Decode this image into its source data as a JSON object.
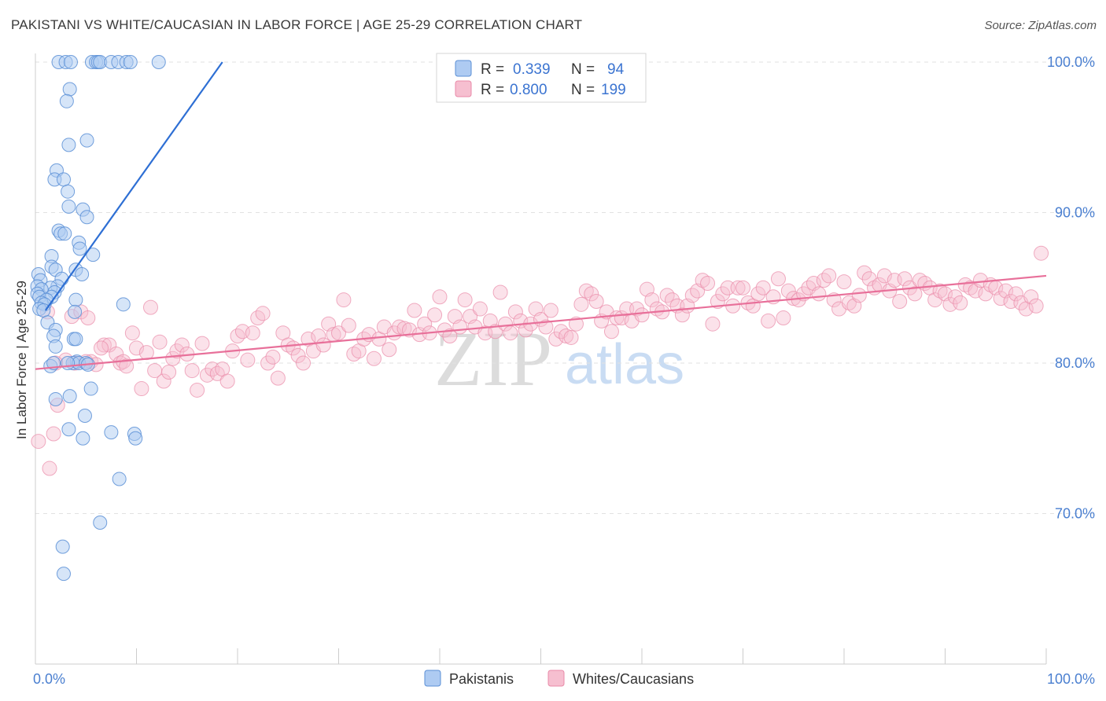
{
  "header": {
    "title": "PAKISTANI VS WHITE/CAUCASIAN IN LABOR FORCE | AGE 25-29 CORRELATION CHART",
    "source": "Source: ZipAtlas.com"
  },
  "watermark": {
    "zip": "ZIP",
    "atlas": "atlas"
  },
  "colors": {
    "blue_fill": "#aecbf2",
    "blue_stroke": "#5b8fd6",
    "blue_line": "#2e6fd4",
    "pink_fill": "#f6bfd0",
    "pink_stroke": "#e98aa8",
    "pink_line": "#e8709a",
    "grid": "#e2e2e2",
    "axis_text": "#4a7fd0"
  },
  "legend": {
    "r_label": "R =",
    "n_label": "N =",
    "rows": [
      {
        "r": "0.339",
        "n": "94"
      },
      {
        "r": "0.800",
        "n": "199"
      }
    ]
  },
  "chart_data": {
    "type": "scatter",
    "title": "PAKISTANI VS WHITE/CAUCASIAN IN LABOR FORCE | AGE 25-29 CORRELATION CHART",
    "xlabel": "",
    "ylabel": "In Labor Force | Age 25-29",
    "xlim": [
      0,
      100
    ],
    "ylim": [
      60,
      100
    ],
    "x_tick_labels": [
      "0.0%",
      "100.0%"
    ],
    "y_ticks": [
      70,
      80,
      90,
      100
    ],
    "y_tick_labels": [
      "70.0%",
      "80.0%",
      "90.0%",
      "100.0%"
    ],
    "legend_position": "top-center",
    "series": [
      {
        "name": "Pakistanis",
        "r": 0.339,
        "n": 94,
        "trend": {
          "x": [
            1.0,
            18.5
          ],
          "y": [
            83.5,
            100.0
          ]
        },
        "points": [
          [
            2.3,
            100
          ],
          [
            3.0,
            100
          ],
          [
            3.5,
            100
          ],
          [
            5.6,
            100
          ],
          [
            6.0,
            100
          ],
          [
            6.2,
            100
          ],
          [
            6.4,
            100
          ],
          [
            7.5,
            100
          ],
          [
            8.2,
            100
          ],
          [
            9.0,
            100
          ],
          [
            9.4,
            100
          ],
          [
            12.2,
            100
          ],
          [
            3.4,
            98.2
          ],
          [
            3.1,
            97.4
          ],
          [
            5.1,
            94.8
          ],
          [
            3.3,
            94.5
          ],
          [
            2.1,
            92.8
          ],
          [
            1.9,
            92.2
          ],
          [
            2.8,
            92.2
          ],
          [
            3.2,
            91.4
          ],
          [
            4.7,
            90.2
          ],
          [
            3.3,
            90.4
          ],
          [
            5.1,
            89.7
          ],
          [
            2.3,
            88.8
          ],
          [
            2.5,
            88.6
          ],
          [
            2.9,
            88.6
          ],
          [
            4.3,
            88.0
          ],
          [
            4.4,
            87.6
          ],
          [
            1.6,
            87.1
          ],
          [
            5.7,
            87.2
          ],
          [
            4.0,
            86.2
          ],
          [
            1.6,
            86.4
          ],
          [
            4.6,
            85.9
          ],
          [
            0.3,
            85.9
          ],
          [
            2.0,
            86.2
          ],
          [
            2.6,
            85.6
          ],
          [
            0.5,
            85.5
          ],
          [
            2.2,
            85.1
          ],
          [
            1.5,
            85.0
          ],
          [
            0.2,
            85.1
          ],
          [
            0.6,
            84.9
          ],
          [
            1.9,
            84.7
          ],
          [
            0.2,
            84.6
          ],
          [
            0.4,
            84.4
          ],
          [
            1.6,
            84.4
          ],
          [
            1.1,
            84.2
          ],
          [
            0.6,
            84.0
          ],
          [
            0.9,
            83.9
          ],
          [
            4.0,
            84.2
          ],
          [
            0.4,
            83.6
          ],
          [
            0.8,
            83.5
          ],
          [
            8.7,
            83.9
          ],
          [
            3.9,
            83.4
          ],
          [
            1.2,
            82.7
          ],
          [
            2.0,
            82.2
          ],
          [
            1.8,
            81.8
          ],
          [
            3.8,
            81.6
          ],
          [
            4.0,
            81.6
          ],
          [
            2.0,
            81.1
          ],
          [
            4.1,
            80.1
          ],
          [
            3.7,
            80.0
          ],
          [
            4.3,
            80.0
          ],
          [
            3.2,
            80.0
          ],
          [
            5.0,
            80.0
          ],
          [
            5.2,
            79.9
          ],
          [
            1.5,
            79.8
          ],
          [
            1.8,
            80.0
          ],
          [
            5.5,
            78.3
          ],
          [
            3.4,
            77.8
          ],
          [
            2.0,
            77.6
          ],
          [
            4.9,
            76.5
          ],
          [
            3.3,
            75.6
          ],
          [
            7.5,
            75.4
          ],
          [
            4.7,
            75.0
          ],
          [
            9.8,
            75.3
          ],
          [
            9.9,
            75.0
          ],
          [
            8.3,
            72.3
          ],
          [
            6.4,
            69.4
          ],
          [
            2.7,
            67.8
          ],
          [
            2.8,
            66.0
          ]
        ]
      },
      {
        "name": "Whites/Caucasians",
        "r": 0.8,
        "n": 199,
        "trend": {
          "x": [
            0.0,
            100.0
          ],
          "y": [
            79.6,
            85.8
          ]
        },
        "points": [
          [
            0.3,
            74.8
          ],
          [
            1.4,
            73.0
          ],
          [
            1.8,
            75.3
          ],
          [
            2.2,
            77.2
          ],
          [
            3.0,
            80.2
          ],
          [
            3.6,
            83.1
          ],
          [
            3.9,
            80.0
          ],
          [
            4.5,
            83.4
          ],
          [
            5.2,
            83.0
          ],
          [
            5.5,
            80.1
          ],
          [
            6.0,
            79.9
          ],
          [
            6.8,
            81.2
          ],
          [
            7.3,
            81.2
          ],
          [
            8.0,
            80.6
          ],
          [
            8.4,
            80.0
          ],
          [
            8.7,
            80.1
          ],
          [
            9.0,
            79.8
          ],
          [
            9.6,
            82.0
          ],
          [
            10.0,
            81.0
          ],
          [
            10.5,
            78.3
          ],
          [
            11.0,
            80.7
          ],
          [
            11.4,
            83.7
          ],
          [
            11.8,
            79.5
          ],
          [
            12.3,
            81.4
          ],
          [
            12.7,
            78.8
          ],
          [
            13.2,
            79.4
          ],
          [
            13.6,
            80.3
          ],
          [
            14.0,
            80.8
          ],
          [
            14.5,
            81.2
          ],
          [
            15.0,
            80.6
          ],
          [
            15.5,
            79.5
          ],
          [
            16.0,
            78.2
          ],
          [
            16.5,
            81.3
          ],
          [
            17.0,
            79.2
          ],
          [
            17.5,
            79.6
          ],
          [
            18.0,
            79.3
          ],
          [
            18.5,
            79.6
          ],
          [
            19.0,
            78.8
          ],
          [
            19.5,
            80.8
          ],
          [
            20.0,
            81.8
          ],
          [
            20.5,
            82.1
          ],
          [
            21.0,
            80.2
          ],
          [
            21.5,
            82.0
          ],
          [
            22.0,
            83.0
          ],
          [
            22.5,
            83.3
          ],
          [
            23.0,
            80.0
          ],
          [
            23.5,
            80.4
          ],
          [
            24.0,
            79.0
          ],
          [
            24.5,
            82.0
          ],
          [
            25.0,
            81.2
          ],
          [
            25.5,
            81.0
          ],
          [
            26.0,
            80.5
          ],
          [
            26.5,
            80.0
          ],
          [
            27.0,
            81.6
          ],
          [
            27.5,
            80.8
          ],
          [
            28.0,
            81.8
          ],
          [
            28.5,
            81.2
          ],
          [
            29.0,
            82.6
          ],
          [
            29.5,
            81.9
          ],
          [
            30.0,
            82.0
          ],
          [
            30.5,
            84.2
          ],
          [
            31.0,
            82.5
          ],
          [
            31.5,
            80.6
          ],
          [
            32.0,
            80.8
          ],
          [
            32.5,
            81.6
          ],
          [
            33.0,
            81.9
          ],
          [
            33.5,
            80.3
          ],
          [
            34.0,
            81.6
          ],
          [
            34.5,
            82.4
          ],
          [
            35.0,
            80.9
          ],
          [
            35.5,
            82.0
          ],
          [
            36.0,
            82.4
          ],
          [
            36.5,
            82.3
          ],
          [
            37.0,
            82.2
          ],
          [
            37.5,
            83.5
          ],
          [
            38.0,
            81.9
          ],
          [
            38.5,
            82.6
          ],
          [
            39.0,
            82.0
          ],
          [
            39.5,
            83.2
          ],
          [
            40.0,
            84.4
          ],
          [
            40.5,
            82.2
          ],
          [
            41.0,
            81.8
          ],
          [
            41.5,
            83.1
          ],
          [
            42.0,
            82.4
          ],
          [
            42.5,
            84.2
          ],
          [
            43.0,
            83.1
          ],
          [
            43.5,
            82.4
          ],
          [
            44.0,
            83.6
          ],
          [
            44.5,
            82.0
          ],
          [
            45.0,
            82.8
          ],
          [
            45.5,
            82.1
          ],
          [
            46.0,
            84.7
          ],
          [
            46.5,
            82.6
          ],
          [
            47.0,
            82.0
          ],
          [
            47.5,
            83.4
          ],
          [
            48.0,
            82.8
          ],
          [
            48.5,
            82.2
          ],
          [
            49.0,
            82.6
          ],
          [
            49.5,
            83.6
          ],
          [
            50.0,
            82.9
          ],
          [
            50.5,
            82.4
          ],
          [
            51.0,
            83.5
          ],
          [
            51.5,
            81.6
          ],
          [
            52.0,
            82.1
          ],
          [
            52.5,
            81.8
          ],
          [
            53.0,
            81.7
          ],
          [
            53.5,
            82.6
          ],
          [
            54.0,
            83.9
          ],
          [
            54.5,
            84.8
          ],
          [
            55.0,
            84.6
          ],
          [
            55.5,
            84.1
          ],
          [
            56.0,
            82.8
          ],
          [
            56.5,
            83.4
          ],
          [
            57.0,
            82.1
          ],
          [
            57.5,
            83.0
          ],
          [
            58.0,
            83.0
          ],
          [
            58.5,
            83.6
          ],
          [
            59.0,
            82.8
          ],
          [
            59.5,
            83.6
          ],
          [
            60.0,
            83.2
          ],
          [
            60.5,
            84.9
          ],
          [
            61.0,
            84.2
          ],
          [
            61.5,
            83.6
          ],
          [
            62.0,
            83.4
          ],
          [
            62.5,
            84.5
          ],
          [
            63.0,
            84.2
          ],
          [
            63.5,
            83.8
          ],
          [
            64.0,
            83.2
          ],
          [
            64.5,
            83.8
          ],
          [
            65.0,
            84.5
          ],
          [
            65.5,
            84.8
          ],
          [
            66.0,
            85.5
          ],
          [
            66.5,
            85.3
          ],
          [
            67.0,
            82.6
          ],
          [
            67.5,
            84.1
          ],
          [
            68.0,
            84.6
          ],
          [
            68.5,
            85.0
          ],
          [
            69.0,
            83.8
          ],
          [
            69.5,
            85.0
          ],
          [
            70.0,
            85.0
          ],
          [
            70.5,
            84.0
          ],
          [
            71.0,
            83.8
          ],
          [
            71.5,
            84.6
          ],
          [
            72.0,
            85.0
          ],
          [
            72.5,
            82.8
          ],
          [
            73.0,
            84.4
          ],
          [
            73.5,
            85.6
          ],
          [
            74.0,
            83.0
          ],
          [
            74.5,
            84.8
          ],
          [
            75.0,
            84.3
          ],
          [
            75.5,
            84.2
          ],
          [
            76.0,
            84.6
          ],
          [
            76.5,
            85.0
          ],
          [
            77.0,
            85.3
          ],
          [
            77.5,
            84.6
          ],
          [
            78.0,
            85.5
          ],
          [
            78.5,
            85.8
          ],
          [
            79.0,
            84.2
          ],
          [
            79.5,
            83.6
          ],
          [
            80.0,
            85.4
          ],
          [
            80.5,
            84.0
          ],
          [
            81.0,
            83.8
          ],
          [
            81.5,
            84.5
          ],
          [
            82.0,
            86.0
          ],
          [
            82.5,
            85.6
          ],
          [
            83.0,
            85.0
          ],
          [
            83.5,
            85.2
          ],
          [
            84.0,
            85.8
          ],
          [
            84.5,
            84.8
          ],
          [
            85.0,
            85.5
          ],
          [
            85.5,
            84.1
          ],
          [
            86.0,
            85.6
          ],
          [
            86.5,
            85.0
          ],
          [
            87.0,
            84.6
          ],
          [
            87.5,
            85.5
          ],
          [
            88.0,
            85.3
          ],
          [
            88.5,
            85.0
          ],
          [
            89.0,
            84.2
          ],
          [
            89.5,
            84.8
          ],
          [
            90.0,
            84.6
          ],
          [
            90.5,
            83.9
          ],
          [
            91.0,
            84.4
          ],
          [
            91.5,
            84.0
          ],
          [
            92.0,
            85.2
          ],
          [
            92.5,
            85.0
          ],
          [
            93.0,
            84.8
          ],
          [
            93.5,
            85.5
          ],
          [
            94.0,
            84.6
          ],
          [
            94.5,
            85.2
          ],
          [
            95.0,
            85.0
          ],
          [
            95.5,
            84.3
          ],
          [
            96.0,
            84.8
          ],
          [
            96.5,
            84.1
          ],
          [
            97.0,
            84.6
          ],
          [
            97.5,
            84.0
          ],
          [
            98.0,
            83.6
          ],
          [
            98.5,
            84.4
          ],
          [
            99.0,
            83.8
          ],
          [
            99.5,
            87.3
          ],
          [
            1.2,
            83.4
          ],
          [
            2.0,
            80.0
          ],
          [
            5.0,
            80.1
          ],
          [
            6.5,
            81.0
          ]
        ]
      }
    ]
  },
  "bottom_legend": [
    {
      "label": "Pakistanis"
    },
    {
      "label": "Whites/Caucasians"
    }
  ]
}
